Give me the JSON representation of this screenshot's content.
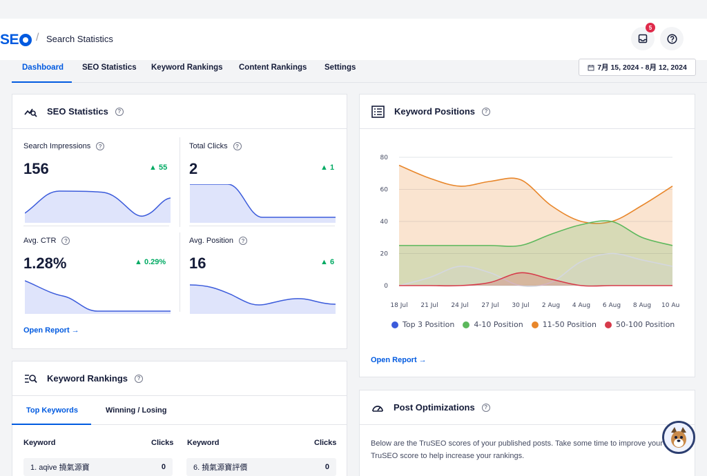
{
  "header": {
    "logo_text": "SE",
    "breadcrumb": "Search Statistics",
    "notifications_count": "5"
  },
  "tabs": [
    "Dashboard",
    "SEO Statistics",
    "Keyword Rankings",
    "Content Rankings",
    "Settings"
  ],
  "date_range": "7月 15, 2024 - 8月 12, 2024",
  "seo_stats": {
    "title": "SEO Statistics",
    "impressions": {
      "label": "Search Impressions",
      "value": "156",
      "change": "55"
    },
    "clicks": {
      "label": "Total Clicks",
      "value": "2",
      "change": "1"
    },
    "ctr": {
      "label": "Avg. CTR",
      "value": "1.28%",
      "change": "0.29%"
    },
    "position": {
      "label": "Avg. Position",
      "value": "16",
      "change": "6"
    },
    "open_report": "Open Report →"
  },
  "keyword_positions": {
    "title": "Keyword Positions",
    "open_report": "Open Report →",
    "legend": [
      "Top 3 Position",
      "4-10 Position",
      "11-50 Position",
      "50-100 Position"
    ],
    "colors": {
      "top3": "#3b5bdb",
      "p4_10": "#5cb85c",
      "p11_50": "#e8862a",
      "p50_100": "#d63a4a"
    }
  },
  "chart_data": {
    "type": "area",
    "title": "",
    "x": [
      "18 Jul",
      "21 Jul",
      "24 Jul",
      "27 Jul",
      "30 Jul",
      "2 Aug",
      "4 Aug",
      "6 Aug",
      "8 Aug",
      "10 Aug"
    ],
    "ylim": [
      0,
      80
    ],
    "yticks": [
      0,
      20,
      40,
      60,
      80
    ],
    "series": [
      {
        "name": "11-50 Position",
        "values": [
          75,
          67,
          62,
          65,
          66,
          50,
          40,
          40,
          50,
          62
        ]
      },
      {
        "name": "4-10 Position",
        "values": [
          25,
          25,
          25,
          25,
          25,
          32,
          38,
          40,
          30,
          25
        ]
      },
      {
        "name": "Top 3 Position",
        "values": [
          0,
          5,
          12,
          8,
          0,
          2,
          15,
          20,
          16,
          12
        ]
      },
      {
        "name": "50-100 Position",
        "values": [
          0,
          0,
          0,
          2,
          8,
          4,
          0,
          0,
          0,
          0
        ]
      }
    ]
  },
  "keyword_rankings": {
    "title": "Keyword Rankings",
    "subtabs": [
      "Top Keywords",
      "Winning / Losing"
    ],
    "col_keyword": "Keyword",
    "col_clicks": "Clicks",
    "rows": [
      {
        "keyword": "1. aqive 撓氣源寶",
        "clicks": "0"
      },
      {
        "keyword": "6. 撓氣源寶評價",
        "clicks": "0"
      }
    ]
  },
  "post_opt": {
    "title": "Post Optimizations",
    "description": "Below are the TruSEO scores of your published posts. Take some time to improve your TruSEO score to help increase your rankings."
  }
}
